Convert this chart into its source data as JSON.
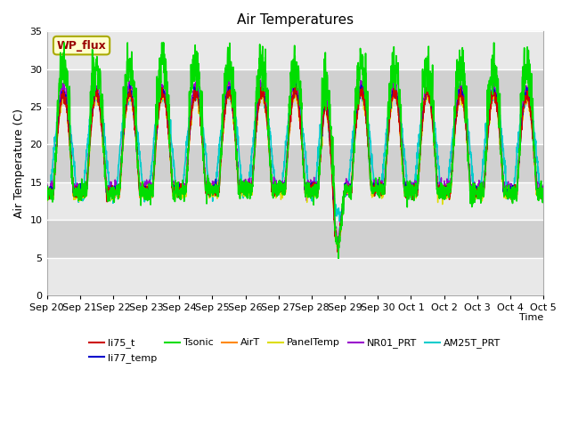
{
  "title": "Air Temperatures",
  "xlabel": "Time",
  "ylabel": "Air Temperature (C)",
  "ylim": [
    0,
    35
  ],
  "background_color": "#ffffff",
  "plot_bg_color": "#e8e8e8",
  "plot_band_color": "#d0d0d0",
  "series_colors": {
    "li75_t": "#cc0000",
    "li77_temp": "#0000cc",
    "Tsonic": "#00dd00",
    "AirT": "#ff8800",
    "PanelTemp": "#dddd00",
    "NR01_PRT": "#9900cc",
    "AM25T_PRT": "#00cccc"
  },
  "legend_label": "WP_flux",
  "x_tick_labels": [
    "Sep 20",
    "Sep 21",
    "Sep 22",
    "Sep 23",
    "Sep 24",
    "Sep 25",
    "Sep 26",
    "Sep 27",
    "Sep 28",
    "Sep 29",
    "Sep 30",
    "Oct 1",
    "Oct 2",
    "Oct 3",
    "Oct 4",
    "Oct 5"
  ],
  "yticks": [
    0,
    5,
    10,
    15,
    20,
    25,
    30,
    35
  ],
  "grid_color": "#ffffff",
  "seed": 42
}
